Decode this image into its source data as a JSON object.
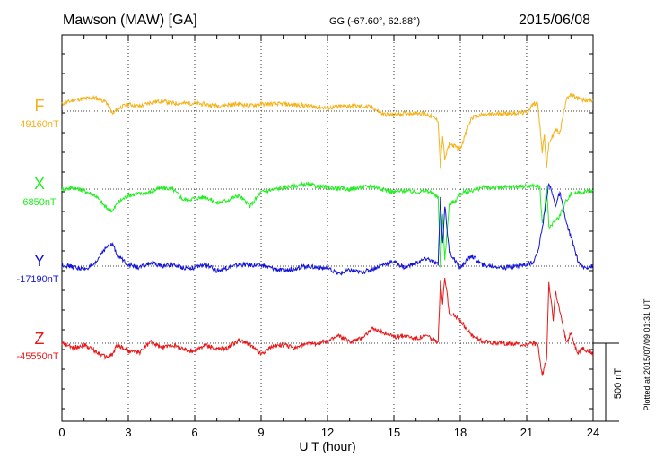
{
  "header": {
    "station": "Mawson (MAW)  [GA]",
    "coords": "GG (-67.60°,  62.88°)",
    "date": "2015/06/08"
  },
  "side_note": "Plotted at 2015/07/09 01:31  UT",
  "scale_label": "500 nT",
  "colors": {
    "F": "#f5b21a",
    "X": "#22ee22",
    "Y": "#1515d8",
    "Z": "#e81818"
  },
  "chart_data": {
    "type": "line",
    "xlabel": "U T (hour)",
    "xlim": [
      0,
      24
    ],
    "x_ticks": [
      "0",
      "3",
      "6",
      "9",
      "12",
      "15",
      "18",
      "21",
      "24"
    ],
    "scale_nT": 500,
    "series": [
      {
        "name": "F",
        "baseline_label": "49160nT",
        "x": [
          0,
          0.5,
          1,
          1.5,
          2,
          2.3,
          2.5,
          3,
          3.5,
          4,
          4.5,
          5,
          6,
          7,
          8,
          8.5,
          9,
          10,
          11,
          12,
          13,
          14,
          14.5,
          15,
          15.5,
          16,
          16.5,
          17,
          17.1,
          17.2,
          17.3,
          17.5,
          18,
          18.5,
          19,
          20,
          21,
          21.3,
          21.5,
          21.7,
          21.8,
          21.9,
          22,
          22.3,
          22.5,
          22.8,
          23,
          23.5,
          24
        ],
        "values": [
          49205,
          49230,
          49240,
          49245,
          49220,
          49140,
          49175,
          49205,
          49190,
          49215,
          49225,
          49210,
          49210,
          49195,
          49205,
          49195,
          49205,
          49205,
          49195,
          49180,
          49195,
          49185,
          49140,
          49135,
          49145,
          49150,
          49140,
          49100,
          48800,
          49000,
          48850,
          48950,
          48920,
          49115,
          49135,
          49145,
          49150,
          49205,
          49215,
          48900,
          49000,
          48800,
          48950,
          49040,
          49020,
          49250,
          49260,
          49230,
          49230
        ]
      },
      {
        "name": "X",
        "baseline_label": "6850nT",
        "x": [
          0,
          0.5,
          1,
          1.5,
          2,
          2.3,
          2.5,
          3,
          3.5,
          4,
          4.5,
          5,
          5.5,
          6,
          6.5,
          7,
          7.5,
          8,
          8.5,
          9,
          10,
          11,
          12,
          13,
          14,
          15,
          15.5,
          16,
          16.5,
          17,
          17.1,
          17.2,
          17.3,
          17.5,
          17.8,
          18,
          18.5,
          19,
          20,
          21,
          21.3,
          21.5,
          21.6,
          21.7,
          21.8,
          21.9,
          22,
          22.5,
          22.8,
          23,
          23.5,
          24
        ],
        "values": [
          6850,
          6860,
          6840,
          6810,
          6730,
          6710,
          6760,
          6810,
          6820,
          6830,
          6860,
          6850,
          6780,
          6790,
          6800,
          6760,
          6780,
          6810,
          6740,
          6830,
          6860,
          6880,
          6860,
          6850,
          6870,
          6830,
          6840,
          6830,
          6840,
          6800,
          6350,
          6700,
          6400,
          6750,
          6780,
          6820,
          6840,
          6860,
          6860,
          6870,
          6870,
          6870,
          6860,
          6620,
          6700,
          6880,
          6600,
          6680,
          6780,
          6820,
          6830,
          6840
        ]
      },
      {
        "name": "Y",
        "baseline_label": "-17190nT",
        "x": [
          0,
          0.5,
          1,
          1.5,
          1.8,
          2,
          2.3,
          2.5,
          3,
          3.5,
          4,
          4.5,
          5,
          5.5,
          6,
          6.5,
          7,
          8,
          9,
          10,
          11,
          12,
          12.5,
          13,
          13.5,
          14,
          14.5,
          15,
          15.5,
          16,
          16.5,
          17,
          17.1,
          17.2,
          17.3,
          17.5,
          18,
          18.5,
          19,
          19.5,
          20,
          21,
          21.3,
          21.5,
          21.7,
          21.8,
          21.9,
          22,
          22.3,
          22.5,
          22.8,
          23,
          23.3,
          23.5,
          24
        ],
        "values": [
          -17180,
          -17195,
          -17210,
          -17180,
          -17100,
          -17070,
          -17050,
          -17120,
          -17180,
          -17200,
          -17170,
          -17190,
          -17180,
          -17200,
          -17200,
          -17180,
          -17220,
          -17180,
          -17185,
          -17220,
          -17190,
          -17205,
          -17240,
          -17215,
          -17230,
          -17210,
          -17180,
          -17160,
          -17200,
          -17170,
          -17140,
          -17180,
          -16750,
          -17050,
          -16800,
          -17100,
          -17200,
          -17120,
          -17185,
          -17190,
          -17200,
          -17180,
          -17160,
          -17100,
          -16950,
          -16850,
          -16760,
          -16650,
          -16800,
          -16720,
          -16920,
          -17000,
          -17150,
          -17200,
          -17190
        ]
      },
      {
        "name": "Z",
        "baseline_label": "-45550nT",
        "x": [
          0,
          0.5,
          1,
          1.5,
          2,
          2.3,
          2.5,
          3,
          3.5,
          4,
          4.5,
          5,
          5.5,
          6,
          6.5,
          7,
          7.5,
          8,
          8.5,
          9,
          9.5,
          10,
          10.5,
          11,
          11.5,
          12,
          12.5,
          13,
          13.5,
          14,
          14.5,
          15,
          15.5,
          16,
          16.5,
          17,
          17.1,
          17.2,
          17.3,
          17.5,
          18,
          18.5,
          19,
          20,
          21,
          21.3,
          21.5,
          21.7,
          21.8,
          21.9,
          22,
          22.2,
          22.3,
          22.5,
          22.8,
          23,
          23.3,
          23.5,
          24
        ],
        "values": [
          -45550,
          -45580,
          -45560,
          -45600,
          -45640,
          -45620,
          -45560,
          -45600,
          -45610,
          -45540,
          -45580,
          -45560,
          -45590,
          -45600,
          -45560,
          -45590,
          -45580,
          -45530,
          -45560,
          -45620,
          -45570,
          -45560,
          -45580,
          -45560,
          -45550,
          -45540,
          -45500,
          -45540,
          -45520,
          -45460,
          -45480,
          -45510,
          -45500,
          -45520,
          -45500,
          -45550,
          -45160,
          -45300,
          -45120,
          -45350,
          -45400,
          -45500,
          -45540,
          -45550,
          -45560,
          -45550,
          -45560,
          -45760,
          -45700,
          -45650,
          -45150,
          -45400,
          -45220,
          -45350,
          -45550,
          -45480,
          -45620,
          -45580,
          -45620
        ]
      }
    ]
  }
}
